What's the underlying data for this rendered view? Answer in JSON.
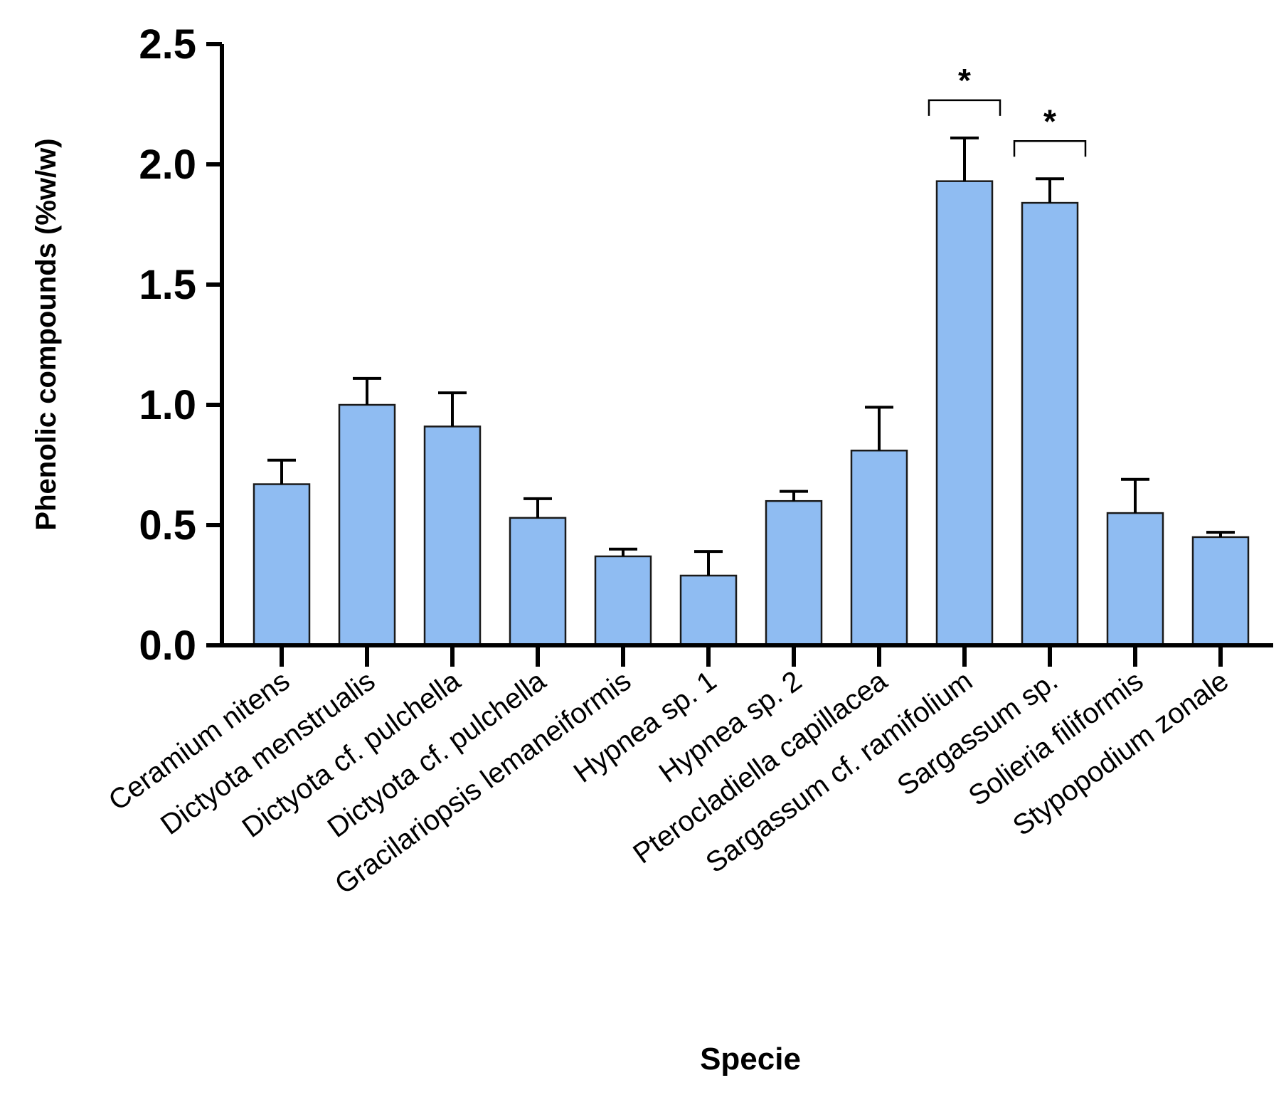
{
  "chart_data": {
    "type": "bar",
    "title": "",
    "xlabel": "Specie",
    "ylabel": "Phenolic compounds (%w/w)",
    "ylim": [
      0,
      2.5
    ],
    "yticks": [
      "0.0",
      "0.5",
      "1.0",
      "1.5",
      "2.0",
      "2.5"
    ],
    "grid": false,
    "bar_color": "#8fbcf2",
    "categories": [
      "Ceramium nitens",
      "Dictyota menstrualis",
      "Dictyota cf. pulchella",
      "Dictyota cf. pulchella",
      "Gracilariopsis lemaneiformis",
      "Hypnea sp. 1",
      "Hypnea sp. 2",
      "Pterocladiella capillacea",
      "Sargassum cf. ramifolium",
      "Sargassum sp.",
      "Solieria filiformis",
      "Stypopodium zonale"
    ],
    "values": [
      0.67,
      1.0,
      0.91,
      0.53,
      0.37,
      0.29,
      0.6,
      0.81,
      1.93,
      1.84,
      0.55,
      0.45
    ],
    "error_upper": [
      0.77,
      1.11,
      1.05,
      0.61,
      0.4,
      0.39,
      0.64,
      0.99,
      2.11,
      1.94,
      0.69,
      0.47
    ],
    "significance": [
      {
        "category_index": 8,
        "label": "*"
      },
      {
        "category_index": 9,
        "label": "*"
      }
    ]
  }
}
